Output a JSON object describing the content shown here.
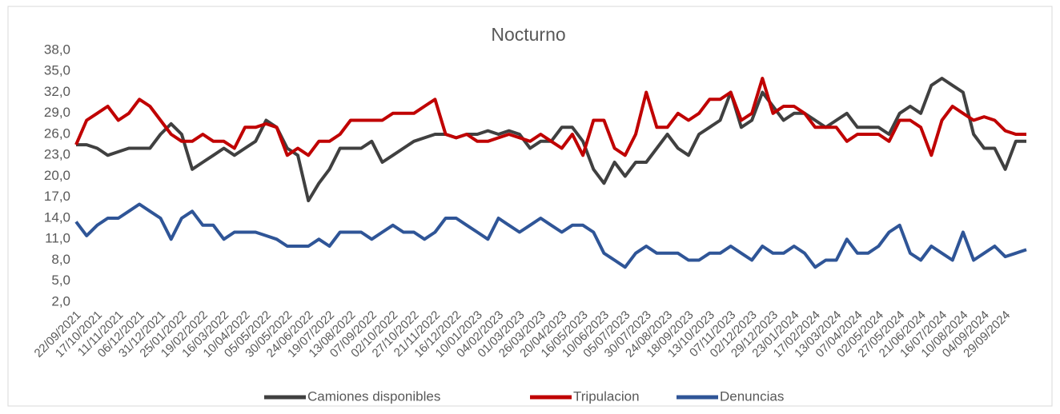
{
  "chart_data": {
    "type": "line",
    "title": "Nocturno",
    "categories": [
      "22/09/2021",
      null,
      "17/10/2021",
      null,
      "11/11/2021",
      null,
      "06/12/2021",
      null,
      "31/12/2021",
      null,
      "25/01/2022",
      null,
      "19/02/2022",
      null,
      "16/03/2022",
      null,
      "10/04/2022",
      null,
      "05/05/2022",
      null,
      "30/05/2022",
      null,
      "24/06/2022",
      null,
      "19/07/2022",
      null,
      "13/08/2022",
      null,
      "07/09/2022",
      null,
      "02/10/2022",
      null,
      "27/10/2022",
      null,
      "21/11/2022",
      null,
      "16/12/2022",
      null,
      "10/01/2023",
      null,
      "04/02/2023",
      null,
      "01/03/2023",
      null,
      "26/03/2023",
      null,
      "20/04/2023",
      null,
      "16/05/2023",
      null,
      "10/06/2023",
      null,
      "05/07/2023",
      null,
      "30/07/2023",
      null,
      "24/08/2023",
      null,
      "18/09/2023",
      null,
      "13/10/2023",
      null,
      "07/11/2023",
      null,
      "02/12/2023",
      null,
      "29/12/2023",
      null,
      "23/01/2024",
      null,
      "17/02/2024",
      null,
      "13/03/2024",
      null,
      "07/04/2024",
      null,
      "02/05/2024",
      null,
      "27/05/2024",
      null,
      "21/06/2024",
      null,
      "16/07/2024",
      null,
      "10/08/2024",
      null,
      "04/09/2024",
      null,
      "29/09/2024",
      null,
      null
    ],
    "series": [
      {
        "name": "Camiones disponibles",
        "color": "#404040",
        "values": [
          24.5,
          24.5,
          24,
          23,
          23.5,
          24,
          24,
          24,
          26,
          27.5,
          26,
          21,
          22,
          23,
          24,
          23,
          24,
          25,
          28,
          27,
          24,
          23,
          16.5,
          19,
          21,
          24,
          24,
          24,
          25,
          22,
          23,
          24,
          25,
          25.5,
          26,
          26,
          25.5,
          26,
          26,
          26.5,
          26,
          26.5,
          26,
          24,
          25,
          25,
          27,
          27,
          25,
          21,
          19,
          22,
          20,
          22,
          22,
          24,
          26,
          24,
          23,
          26,
          27,
          28,
          32,
          27,
          28,
          32,
          30,
          28,
          29,
          29,
          28,
          27,
          28,
          29,
          27,
          27,
          27,
          26,
          29,
          30,
          29,
          33,
          34,
          33,
          32,
          26,
          24,
          24,
          21,
          25,
          25
        ]
      },
      {
        "name": "Tripulacion",
        "color": "#c00000",
        "values": [
          24.5,
          28,
          29,
          30,
          28,
          29,
          31,
          30,
          28,
          26,
          25,
          25,
          26,
          25,
          25,
          24,
          27,
          27,
          27.5,
          27,
          23,
          24,
          23,
          25,
          25,
          26,
          28,
          28,
          28,
          28,
          29,
          29,
          29,
          30,
          31,
          26,
          25.5,
          26,
          25,
          25,
          25.5,
          26,
          25.5,
          25,
          26,
          25,
          24,
          26,
          23,
          28,
          28,
          24,
          23,
          26,
          32,
          27,
          27,
          29,
          28,
          29,
          31,
          31,
          32,
          28,
          29,
          34,
          29,
          30,
          30,
          29,
          27,
          27,
          27,
          25,
          26,
          26,
          26,
          25,
          28,
          28,
          27,
          23,
          28,
          30,
          29,
          28,
          28.5,
          28,
          26.5,
          26,
          26
        ]
      },
      {
        "name": "Denuncias",
        "color": "#2f5597",
        "values": [
          13.5,
          11.5,
          13,
          14,
          14,
          15,
          16,
          15,
          14,
          11,
          14,
          15,
          13,
          13,
          11,
          12,
          12,
          12,
          11.5,
          11,
          10,
          10,
          10,
          11,
          10,
          12,
          12,
          12,
          11,
          12,
          13,
          12,
          12,
          11,
          12,
          14,
          14,
          13,
          12,
          11,
          14,
          13,
          12,
          13,
          14,
          13,
          12,
          13,
          13,
          12,
          9,
          8,
          7,
          9,
          10,
          9,
          9,
          9,
          8,
          8,
          9,
          9,
          10,
          9,
          8,
          10,
          9,
          9,
          10,
          9,
          7,
          8,
          8,
          11,
          9,
          9,
          10,
          12,
          13,
          9,
          8,
          10,
          9,
          8,
          12,
          8,
          9,
          10,
          8.5,
          9,
          9.5
        ]
      }
    ],
    "ylim": [
      2,
      38
    ],
    "yticks": [
      {
        "value": 2,
        "label": "2,0"
      },
      {
        "value": 5,
        "label": "5,0"
      },
      {
        "value": 8,
        "label": "8,0"
      },
      {
        "value": 11,
        "label": "11,0"
      },
      {
        "value": 14,
        "label": "14,0"
      },
      {
        "value": 17,
        "label": "17,0"
      },
      {
        "value": 20,
        "label": "20,0"
      },
      {
        "value": 23,
        "label": "23,0"
      },
      {
        "value": 26,
        "label": "26,0"
      },
      {
        "value": 29,
        "label": "29,0"
      },
      {
        "value": 32,
        "label": "32,0"
      },
      {
        "value": 35,
        "label": "35,0"
      },
      {
        "value": 38,
        "label": "38,0"
      }
    ],
    "grid": false,
    "legend": "bottom"
  }
}
